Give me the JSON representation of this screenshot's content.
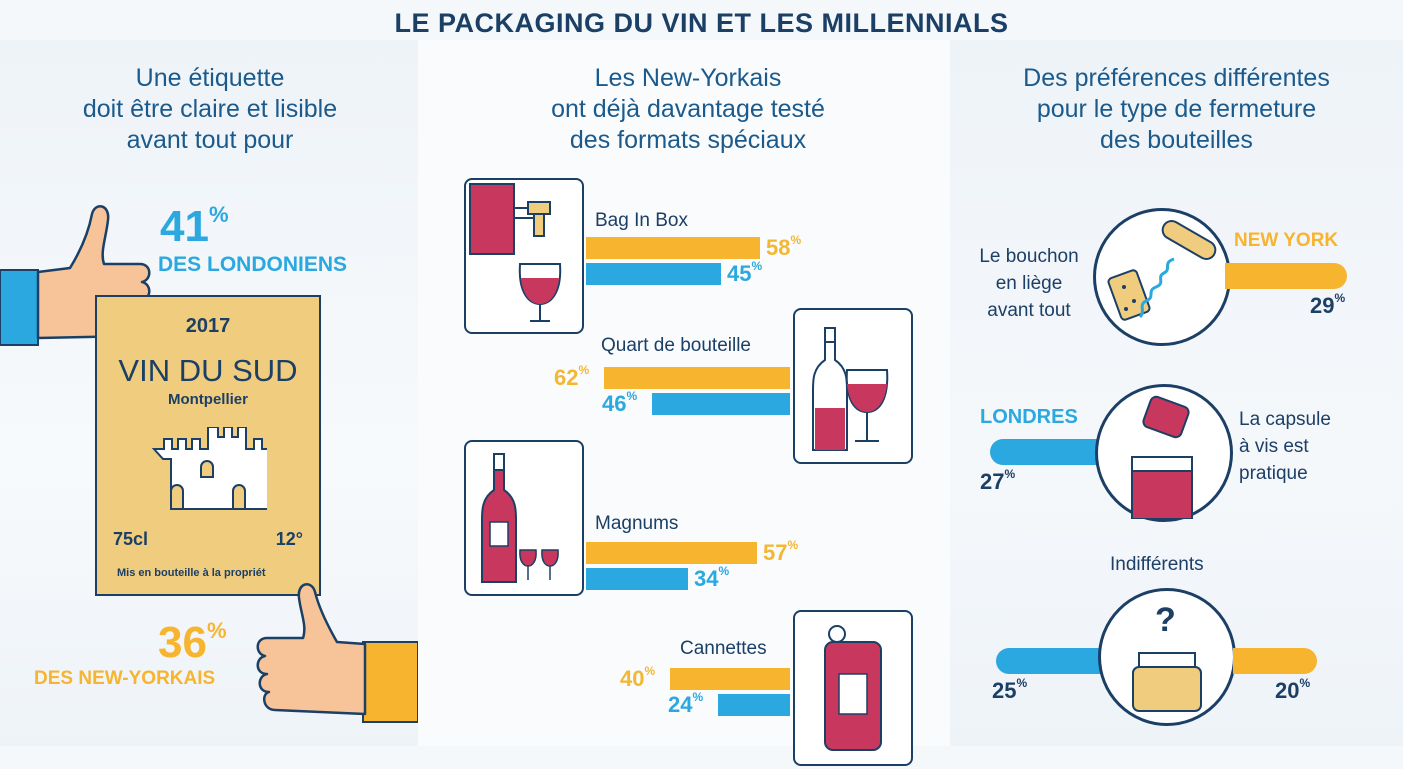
{
  "title": "LE PACKAGING DU VIN ET LES MILLENNIALS",
  "panel1": {
    "title_lines": [
      "Une étiquette",
      "doit être claire et lisible",
      "avant tout pour"
    ],
    "stat_top": {
      "value": "41",
      "unit": "%",
      "label": "DES LONDONIENS"
    },
    "stat_bottom": {
      "value": "36",
      "unit": "%",
      "label": "DES NEW-YORKAIS"
    },
    "label_card": {
      "year": "2017",
      "name": "VIN DU SUD",
      "place": "Montpellier",
      "volume": "75cl",
      "degree": "12°",
      "footer": "Mis en bouteille à la propriét"
    }
  },
  "panel2": {
    "title_lines": [
      "Les New-Yorkais",
      "ont déjà davantage testé",
      "des formats spéciaux"
    ],
    "items": [
      {
        "label": "Bag In Box",
        "ny": 58,
        "london": 45
      },
      {
        "label": "Quart de bouteille",
        "ny": 62,
        "london": 46
      },
      {
        "label": "Magnums",
        "ny": 57,
        "london": 34
      },
      {
        "label": "Cannettes",
        "ny": 40,
        "london": 24
      }
    ]
  },
  "panel3": {
    "title_lines": [
      "Des préférences différentes",
      "pour le type de fermeture",
      "des bouteilles"
    ],
    "cork": {
      "text_lines": [
        "Le bouchon",
        "en liège",
        "avant tout"
      ],
      "city": "NEW YORK",
      "value": 29
    },
    "screw": {
      "text_lines": [
        "La capsule",
        "à vis est",
        "pratique"
      ],
      "city": "LONDRES",
      "value": 27
    },
    "indiff": {
      "label": "Indifférents",
      "london": 25,
      "ny": 20,
      "icon_text": "?"
    }
  },
  "colors": {
    "ny": "#f7b42f",
    "london": "#2aa8df",
    "navy": "#1c3f66",
    "wine": "#c8375e",
    "label_bg": "#efcc7e"
  }
}
